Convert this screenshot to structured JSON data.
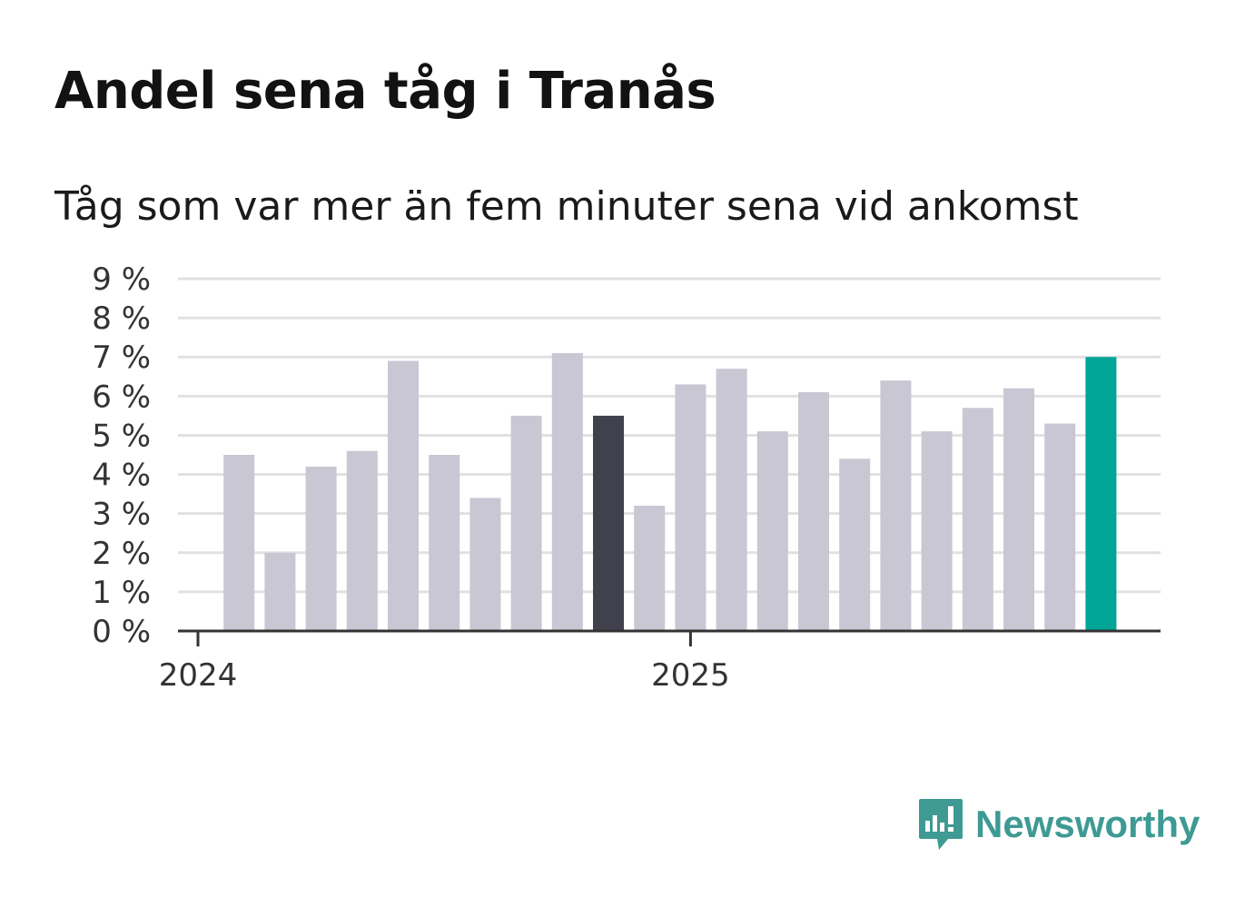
{
  "title": "Andel sena tåg i Tranås",
  "subtitle": "Tåg som var mer än fem minuter sena vid ankomst",
  "brand": {
    "name": "Newsworthy",
    "icon": "newsworthy-logo-icon",
    "color": "#3e9a93"
  },
  "colors": {
    "default": "#c8c7d3",
    "highlight": "#41404d",
    "latest": "#00a598",
    "grid": "#e1e1e1",
    "axis": "#333333",
    "text": "#333333"
  },
  "chart_data": {
    "type": "bar",
    "title": "Andel sena tåg i Tranås",
    "subtitle": "Tåg som var mer än fem minuter sena vid ankomst",
    "xlabel": "",
    "ylabel": "",
    "ylim": [
      0,
      9
    ],
    "yticks": [
      0,
      1,
      2,
      3,
      4,
      5,
      6,
      7,
      8,
      9
    ],
    "ytick_suffix": " %",
    "grid": true,
    "x_tick_labels": [
      {
        "label": "2024",
        "index": 0
      },
      {
        "label": "2025",
        "index": 12
      }
    ],
    "categories": [
      "2024-01",
      "2024-02",
      "2024-03",
      "2024-04",
      "2024-05",
      "2024-06",
      "2024-07",
      "2024-08",
      "2024-09",
      "2024-10",
      "2024-11",
      "2024-12",
      "2025-01",
      "2025-02",
      "2025-03",
      "2025-04",
      "2025-05",
      "2025-06",
      "2025-07",
      "2025-08",
      "2025-09",
      "2025-10",
      "2025-11",
      "2025-12"
    ],
    "values": [
      null,
      4.5,
      2.0,
      4.2,
      4.6,
      6.9,
      4.5,
      3.4,
      5.5,
      7.1,
      5.5,
      3.2,
      6.3,
      6.7,
      5.1,
      6.1,
      4.4,
      6.4,
      5.1,
      5.7,
      6.2,
      5.3,
      7.0,
      null
    ],
    "highlight_index": 10,
    "latest_index": 22
  }
}
